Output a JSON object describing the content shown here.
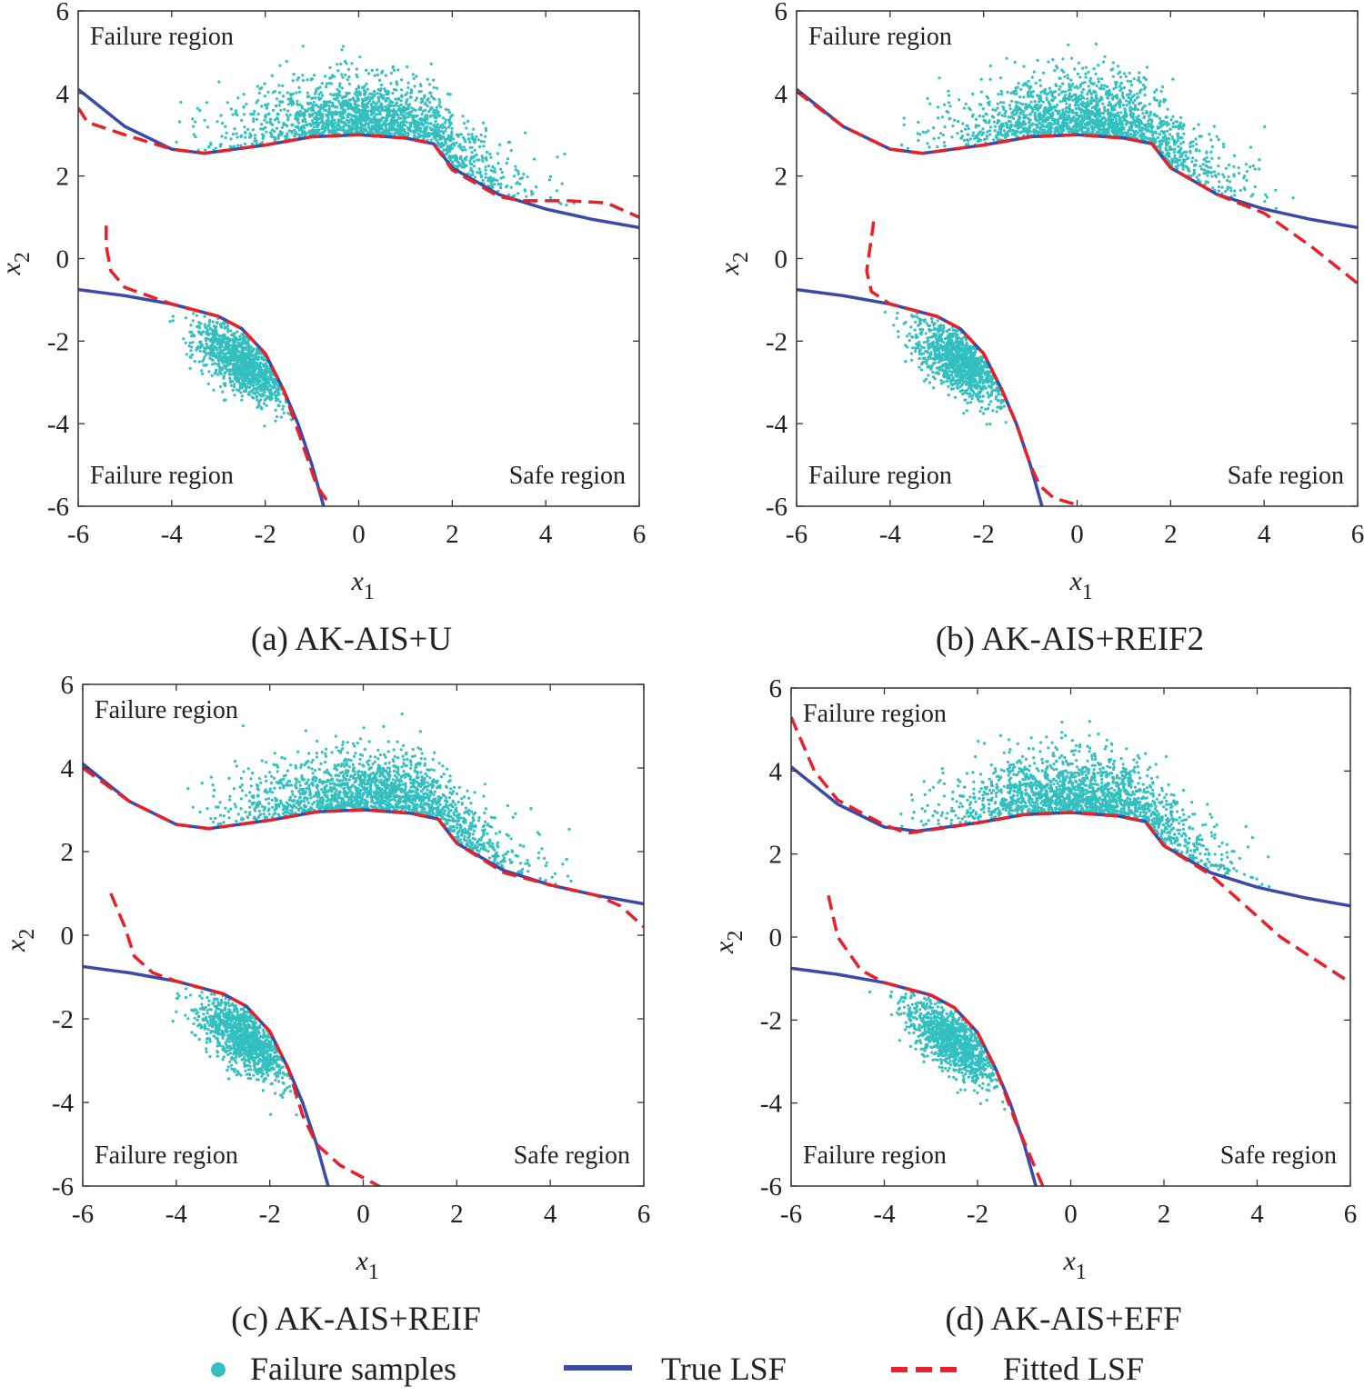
{
  "chart_data": [
    {
      "type": "scatter",
      "caption": "(a) AK-AIS+U",
      "xlabel": "x",
      "xlabel_sub": "1",
      "ylabel": "x",
      "ylabel_sub": "2",
      "xlim": [
        -6,
        6
      ],
      "ylim": [
        -6,
        6
      ],
      "xticks": [
        "-6",
        "-4",
        "-2",
        "0",
        "2",
        "4",
        "6"
      ],
      "yticks": [
        "-6",
        "-4",
        "-2",
        "0",
        "2",
        "4",
        "6"
      ],
      "annotations": {
        "top_left": "Failure region",
        "bottom_left": "Failure region",
        "bottom_right": "Safe region"
      },
      "true_lsf": {
        "upper": [
          [
            -6,
            4.1
          ],
          [
            -5,
            3.2
          ],
          [
            -4,
            2.65
          ],
          [
            -3.3,
            2.55
          ],
          [
            -2,
            2.75
          ],
          [
            -1,
            2.95
          ],
          [
            0,
            3.0
          ],
          [
            1,
            2.92
          ],
          [
            1.6,
            2.78
          ],
          [
            2,
            2.2
          ],
          [
            3,
            1.55
          ],
          [
            4,
            1.2
          ],
          [
            5,
            0.95
          ],
          [
            6,
            0.75
          ]
        ],
        "lower": [
          [
            -6,
            -0.75
          ],
          [
            -5,
            -0.9
          ],
          [
            -4,
            -1.1
          ],
          [
            -3,
            -1.4
          ],
          [
            -2.5,
            -1.7
          ],
          [
            -2,
            -2.3
          ],
          [
            -1.6,
            -3.2
          ],
          [
            -1.3,
            -4.0
          ],
          [
            -1,
            -5.0
          ],
          [
            -0.75,
            -6
          ]
        ]
      },
      "fitted_lsf": {
        "upper": [
          [
            -6,
            3.65
          ],
          [
            -5.8,
            3.3
          ],
          [
            -5,
            3.0
          ],
          [
            -4,
            2.65
          ],
          [
            -3.3,
            2.55
          ],
          [
            -2,
            2.75
          ],
          [
            -1,
            2.95
          ],
          [
            0,
            3.0
          ],
          [
            1,
            2.92
          ],
          [
            1.6,
            2.78
          ],
          [
            2,
            2.15
          ],
          [
            3,
            1.5
          ],
          [
            3.5,
            1.4
          ],
          [
            4.5,
            1.4
          ],
          [
            5.3,
            1.35
          ],
          [
            6,
            1.0
          ]
        ],
        "lower": [
          [
            -5.4,
            0.8
          ],
          [
            -5.4,
            0.3
          ],
          [
            -5.3,
            -0.3
          ],
          [
            -5,
            -0.7
          ],
          [
            -4,
            -1.1
          ],
          [
            -3,
            -1.4
          ],
          [
            -2.5,
            -1.7
          ],
          [
            -2,
            -2.3
          ],
          [
            -1.6,
            -3.2
          ],
          [
            -1.2,
            -4.5
          ],
          [
            -0.9,
            -5.5
          ],
          [
            -0.6,
            -6
          ]
        ]
      }
    },
    {
      "type": "scatter",
      "caption": "(b) AK-AIS+REIF2",
      "xlabel": "x",
      "xlabel_sub": "1",
      "ylabel": "x",
      "ylabel_sub": "2",
      "xlim": [
        -6,
        6
      ],
      "ylim": [
        -6,
        6
      ],
      "xticks": [
        "-6",
        "-4",
        "-2",
        "0",
        "2",
        "4",
        "6"
      ],
      "yticks": [
        "-6",
        "-4",
        "-2",
        "0",
        "2",
        "4",
        "6"
      ],
      "annotations": {
        "top_left": "Failure region",
        "bottom_left": "Failure region",
        "bottom_right": "Safe region"
      },
      "true_lsf": {
        "upper": [
          [
            -6,
            4.1
          ],
          [
            -5,
            3.2
          ],
          [
            -4,
            2.65
          ],
          [
            -3.3,
            2.55
          ],
          [
            -2,
            2.75
          ],
          [
            -1,
            2.95
          ],
          [
            0,
            3.0
          ],
          [
            1,
            2.92
          ],
          [
            1.6,
            2.78
          ],
          [
            2,
            2.2
          ],
          [
            3,
            1.55
          ],
          [
            4,
            1.2
          ],
          [
            5,
            0.95
          ],
          [
            6,
            0.75
          ]
        ],
        "lower": [
          [
            -6,
            -0.75
          ],
          [
            -5,
            -0.9
          ],
          [
            -4,
            -1.1
          ],
          [
            -3,
            -1.4
          ],
          [
            -2.5,
            -1.7
          ],
          [
            -2,
            -2.3
          ],
          [
            -1.6,
            -3.2
          ],
          [
            -1.3,
            -4.0
          ],
          [
            -1,
            -5.0
          ],
          [
            -0.75,
            -6
          ]
        ]
      },
      "fitted_lsf": {
        "upper": [
          [
            -6,
            4.05
          ],
          [
            -5,
            3.2
          ],
          [
            -4,
            2.65
          ],
          [
            -3.3,
            2.55
          ],
          [
            -2,
            2.75
          ],
          [
            -1,
            2.95
          ],
          [
            0,
            3.0
          ],
          [
            1,
            2.92
          ],
          [
            1.6,
            2.78
          ],
          [
            2,
            2.2
          ],
          [
            3,
            1.55
          ],
          [
            4,
            1.1
          ],
          [
            5,
            0.3
          ],
          [
            6,
            -0.6
          ]
        ],
        "lower": [
          [
            -4.35,
            0.9
          ],
          [
            -4.4,
            0.5
          ],
          [
            -4.5,
            -0.3
          ],
          [
            -4.4,
            -0.8
          ],
          [
            -4,
            -1.1
          ],
          [
            -3,
            -1.4
          ],
          [
            -2.5,
            -1.7
          ],
          [
            -2,
            -2.3
          ],
          [
            -1.6,
            -3.2
          ],
          [
            -1.3,
            -4.0
          ],
          [
            -1,
            -5.0
          ],
          [
            -0.8,
            -5.5
          ],
          [
            -0.5,
            -5.8
          ],
          [
            0.1,
            -6
          ]
        ]
      }
    },
    {
      "type": "scatter",
      "caption": "(c) AK-AIS+REIF",
      "xlabel": "x",
      "xlabel_sub": "1",
      "ylabel": "x",
      "ylabel_sub": "2",
      "xlim": [
        -6,
        6
      ],
      "ylim": [
        -6,
        6
      ],
      "xticks": [
        "-6",
        "-4",
        "-2",
        "0",
        "2",
        "4",
        "6"
      ],
      "yticks": [
        "-6",
        "-4",
        "-2",
        "0",
        "2",
        "4",
        "6"
      ],
      "annotations": {
        "top_left": "Failure region",
        "bottom_left": "Failure region",
        "bottom_right": "Safe region"
      },
      "true_lsf": {
        "upper": [
          [
            -6,
            4.1
          ],
          [
            -5,
            3.2
          ],
          [
            -4,
            2.65
          ],
          [
            -3.3,
            2.55
          ],
          [
            -2,
            2.75
          ],
          [
            -1,
            2.95
          ],
          [
            0,
            3.0
          ],
          [
            1,
            2.92
          ],
          [
            1.6,
            2.78
          ],
          [
            2,
            2.2
          ],
          [
            3,
            1.55
          ],
          [
            4,
            1.2
          ],
          [
            5,
            0.95
          ],
          [
            6,
            0.75
          ]
        ],
        "lower": [
          [
            -6,
            -0.75
          ],
          [
            -5,
            -0.9
          ],
          [
            -4,
            -1.1
          ],
          [
            -3,
            -1.4
          ],
          [
            -2.5,
            -1.7
          ],
          [
            -2,
            -2.3
          ],
          [
            -1.6,
            -3.2
          ],
          [
            -1.3,
            -4.0
          ],
          [
            -1,
            -5.0
          ],
          [
            -0.75,
            -6
          ]
        ]
      },
      "fitted_lsf": {
        "upper": [
          [
            -6,
            4.0
          ],
          [
            -5,
            3.2
          ],
          [
            -4,
            2.65
          ],
          [
            -3.3,
            2.55
          ],
          [
            -2,
            2.75
          ],
          [
            -1,
            2.95
          ],
          [
            0,
            3.0
          ],
          [
            1,
            2.92
          ],
          [
            1.6,
            2.78
          ],
          [
            2,
            2.2
          ],
          [
            3,
            1.5
          ],
          [
            4,
            1.2
          ],
          [
            5,
            0.95
          ],
          [
            5.5,
            0.7
          ],
          [
            6,
            0.2
          ]
        ],
        "lower": [
          [
            -5.4,
            1.0
          ],
          [
            -5.1,
            0.2
          ],
          [
            -4.9,
            -0.5
          ],
          [
            -4.5,
            -0.9
          ],
          [
            -4,
            -1.1
          ],
          [
            -3,
            -1.4
          ],
          [
            -2.5,
            -1.7
          ],
          [
            -2,
            -2.3
          ],
          [
            -1.6,
            -3.2
          ],
          [
            -1.3,
            -4.3
          ],
          [
            -1,
            -5.0
          ],
          [
            -0.5,
            -5.5
          ],
          [
            0.5,
            -6.1
          ]
        ]
      }
    },
    {
      "type": "scatter",
      "caption": "(d) AK-AIS+EFF",
      "xlabel": "x",
      "xlabel_sub": "1",
      "ylabel": "x",
      "ylabel_sub": "2",
      "xlim": [
        -6,
        6
      ],
      "ylim": [
        -6,
        6
      ],
      "xticks": [
        "-6",
        "-4",
        "-2",
        "0",
        "2",
        "4",
        "6"
      ],
      "yticks": [
        "-6",
        "-4",
        "-2",
        "0",
        "2",
        "4",
        "6"
      ],
      "annotations": {
        "top_left": "Failure region",
        "bottom_left": "Failure region",
        "bottom_right": "Safe region"
      },
      "true_lsf": {
        "upper": [
          [
            -6,
            4.1
          ],
          [
            -5,
            3.2
          ],
          [
            -4,
            2.65
          ],
          [
            -3.3,
            2.55
          ],
          [
            -2,
            2.75
          ],
          [
            -1,
            2.95
          ],
          [
            0,
            3.0
          ],
          [
            1,
            2.92
          ],
          [
            1.6,
            2.78
          ],
          [
            2,
            2.2
          ],
          [
            3,
            1.55
          ],
          [
            4,
            1.2
          ],
          [
            5,
            0.95
          ],
          [
            6,
            0.75
          ]
        ],
        "lower": [
          [
            -6,
            -0.75
          ],
          [
            -5,
            -0.9
          ],
          [
            -4,
            -1.1
          ],
          [
            -3,
            -1.4
          ],
          [
            -2.5,
            -1.7
          ],
          [
            -2,
            -2.3
          ],
          [
            -1.6,
            -3.2
          ],
          [
            -1.3,
            -4.0
          ],
          [
            -1,
            -5.0
          ],
          [
            -0.75,
            -6
          ]
        ]
      },
      "fitted_lsf": {
        "upper": [
          [
            -6,
            5.3
          ],
          [
            -5.5,
            4.0
          ],
          [
            -5,
            3.3
          ],
          [
            -4,
            2.7
          ],
          [
            -3.5,
            2.5
          ],
          [
            -2,
            2.75
          ],
          [
            -1,
            2.95
          ],
          [
            0,
            3.0
          ],
          [
            1,
            2.92
          ],
          [
            1.6,
            2.78
          ],
          [
            2,
            2.2
          ],
          [
            3,
            1.5
          ],
          [
            3.5,
            1.0
          ],
          [
            4.5,
            0.0
          ],
          [
            6,
            -1.1
          ]
        ],
        "lower": [
          [
            -5.2,
            1.0
          ],
          [
            -5,
            0.0
          ],
          [
            -4.5,
            -0.8
          ],
          [
            -4,
            -1.1
          ],
          [
            -3,
            -1.4
          ],
          [
            -2.5,
            -1.7
          ],
          [
            -2,
            -2.3
          ],
          [
            -1.6,
            -3.2
          ],
          [
            -1.2,
            -4.4
          ],
          [
            -0.6,
            -6
          ]
        ]
      }
    }
  ],
  "legend": {
    "position": "bottom",
    "items": [
      {
        "label": "Failure samples",
        "color": "#33bfbf",
        "marker": "dot"
      },
      {
        "label": "True LSF",
        "color": "#3a4aa8",
        "marker": "solid-line"
      },
      {
        "label": "Fitted LSF",
        "color": "#e8202a",
        "marker": "dashed-line"
      }
    ]
  },
  "colors": {
    "samples": "#33bfbf",
    "true": "#3a4aa8",
    "fitted": "#e8202a",
    "axes": "#333333"
  }
}
